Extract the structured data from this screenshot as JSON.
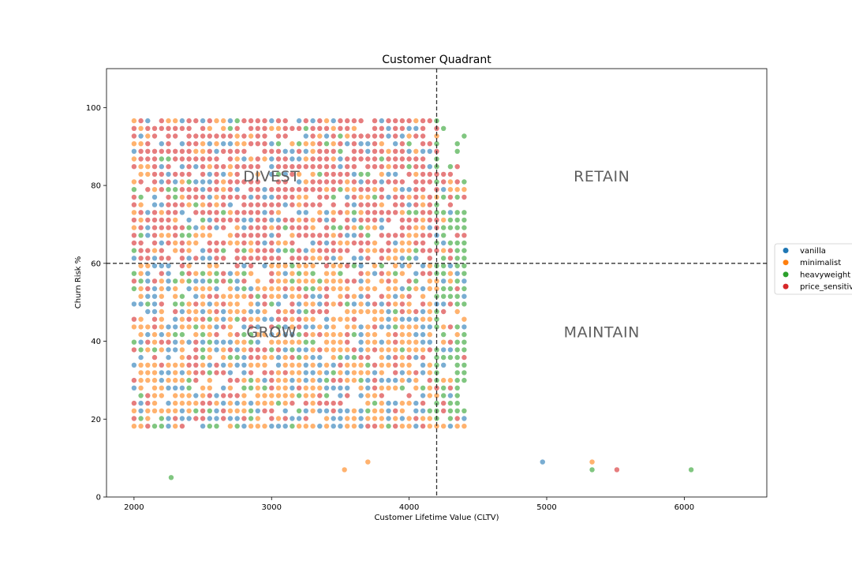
{
  "chart_data": {
    "type": "scatter",
    "title": "Customer Quadrant",
    "xlabel": "Customer Lifetime Value (CLTV)",
    "ylabel": "Churn Risk %",
    "xlim": [
      1800,
      6600
    ],
    "ylim": [
      0,
      110
    ],
    "xticks": [
      2000,
      3000,
      4000,
      5000,
      6000
    ],
    "yticks": [
      0,
      20,
      40,
      60,
      80,
      100
    ],
    "threshold_lines": {
      "x": 4200,
      "y": 60,
      "style": "dashed"
    },
    "quadrant_labels": [
      {
        "text": "DIVEST",
        "x": 3000,
        "y": 81
      },
      {
        "text": "RETAIN",
        "x": 5400,
        "y": 81
      },
      {
        "text": "GROW",
        "x": 3000,
        "y": 41
      },
      {
        "text": "MAINTAIN",
        "x": 5400,
        "y": 41
      }
    ],
    "legend_position": "right",
    "grid": false,
    "point_opacity": 0.6,
    "x_grid": {
      "start": 2000,
      "step": 50,
      "count": 49
    },
    "y_grid": {
      "start": 18.2,
      "step": 1.96,
      "count": 41
    },
    "series": [
      {
        "name": "vanilla",
        "color": "#1f77b4"
      },
      {
        "name": "minimalist",
        "color": "#ff7f0e"
      },
      {
        "name": "heavyweight",
        "color": "#2ca02c"
      },
      {
        "name": "price_sensitive",
        "color": "#d62728"
      }
    ],
    "outliers": [
      {
        "x": 2270,
        "y": 5,
        "series": "heavyweight"
      },
      {
        "x": 3530,
        "y": 7,
        "series": "minimalist"
      },
      {
        "x": 3700,
        "y": 9,
        "series": "minimalist"
      },
      {
        "x": 4970,
        "y": 9,
        "series": "vanilla"
      },
      {
        "x": 5330,
        "y": 9,
        "series": "minimalist"
      },
      {
        "x": 5330,
        "y": 7,
        "series": "heavyweight"
      },
      {
        "x": 5510,
        "y": 7,
        "series": "price_sensitive"
      },
      {
        "x": 6050,
        "y": 7,
        "series": "heavyweight"
      }
    ]
  }
}
